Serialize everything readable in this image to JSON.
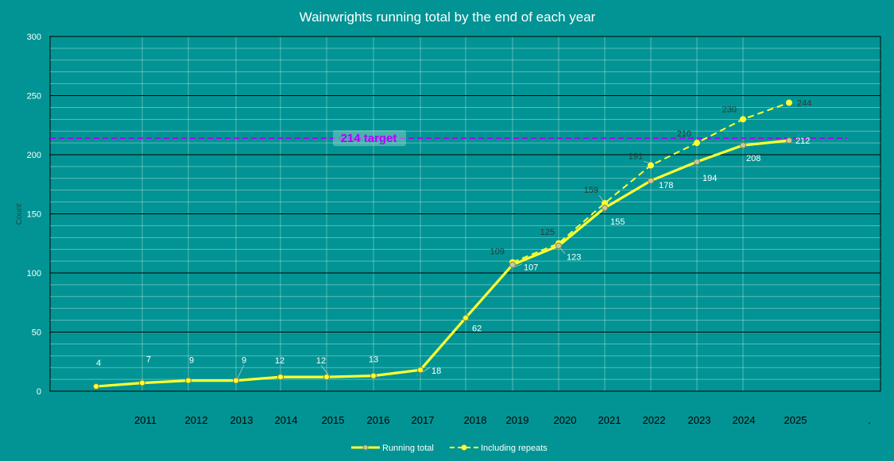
{
  "chart_data": {
    "type": "line",
    "title": "Wainwrights running total by the end of each year",
    "ylabel": "Count",
    "xlabel": "",
    "ylim": [
      0,
      300
    ],
    "yticks": [
      0,
      50,
      100,
      150,
      200,
      250,
      300
    ],
    "x_tick_labels": [
      "2011",
      "2012",
      "2013",
      "2014",
      "2015",
      "2016",
      "2017",
      "2018",
      "2019",
      "2020",
      "2021",
      "2022",
      "2023",
      "2024",
      "2025"
    ],
    "trailing_label": ".",
    "grid": true,
    "legend_position": "bottom-center",
    "target": {
      "value": 214,
      "label": "214 target",
      "color": "#b000ff"
    },
    "series": [
      {
        "name": "Running total",
        "style": "solid",
        "marker": "hollow",
        "color": "#ffff33",
        "values": [
          4,
          7,
          9,
          9,
          12,
          12,
          13,
          18,
          62,
          107,
          123,
          155,
          178,
          194,
          208,
          212
        ]
      },
      {
        "name": "Including repeats",
        "style": "dashed",
        "marker": "filled",
        "color": "#ffff33",
        "values": [
          null,
          null,
          null,
          null,
          null,
          null,
          null,
          null,
          null,
          109,
          125,
          159,
          191,
          210,
          230,
          244
        ]
      }
    ],
    "colors": {
      "background": "#029494",
      "grid": "#000000",
      "line": "#ffff33"
    }
  }
}
